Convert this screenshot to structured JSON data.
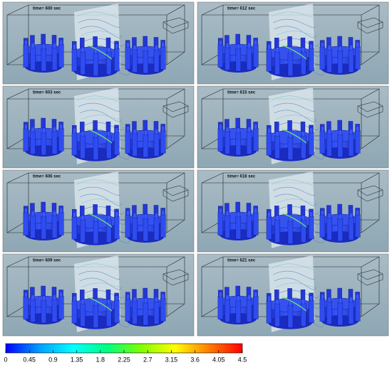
{
  "panels": [
    {
      "time_label": "time= 600 sec"
    },
    {
      "time_label": "time= 612 sec"
    },
    {
      "time_label": "time= 603 sec"
    },
    {
      "time_label": "time= 615 sec"
    },
    {
      "time_label": "time= 606 sec"
    },
    {
      "time_label": "time= 618 sec"
    },
    {
      "time_label": "time= 609 sec"
    },
    {
      "time_label": "time= 621 sec"
    }
  ],
  "colorbar": {
    "range": [
      0,
      4.5
    ],
    "ticks": [
      0,
      0.45,
      0.9,
      1.35,
      1.8,
      2.25,
      2.7,
      3.15,
      3.6,
      4.05,
      4.5
    ],
    "colors": [
      "#0000ff",
      "#00a0ff",
      "#00ffff",
      "#00ff80",
      "#80ff00",
      "#ffff00",
      "#ff8000",
      "#ff0000"
    ]
  }
}
